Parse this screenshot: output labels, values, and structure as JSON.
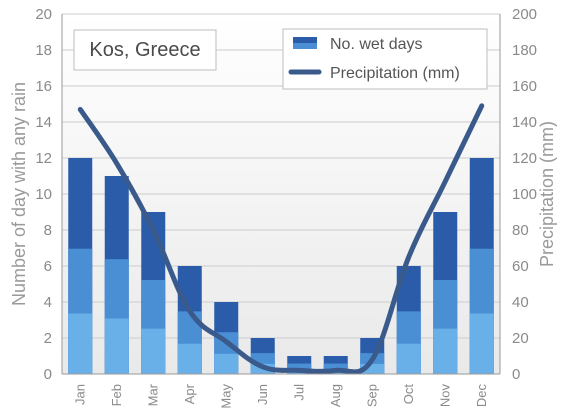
{
  "chart_data": {
    "type": "bar",
    "title": "Kos, Greece",
    "categories": [
      "Jan",
      "Feb",
      "Mar",
      "Apr",
      "May",
      "Jun",
      "Jul",
      "Aug",
      "Sep",
      "Oct",
      "Nov",
      "Dec"
    ],
    "series": [
      {
        "name": "No. wet days",
        "type": "bar",
        "axis": "left",
        "values": [
          12,
          11,
          9,
          6,
          4,
          2,
          1,
          1,
          2,
          6,
          9,
          12
        ]
      },
      {
        "name": "Precipitation (mm)",
        "type": "line",
        "axis": "right",
        "values": [
          147,
          117,
          80,
          35,
          18,
          4,
          2,
          2,
          8,
          65,
          107,
          149
        ]
      }
    ],
    "ylabel_left": "Number of day with any rain",
    "ylabel_right": "Precipitation (mm)",
    "ylim_left": [
      0,
      20
    ],
    "ylim_right": [
      0,
      200
    ],
    "yticks_left": [
      "0",
      "2",
      "4",
      "6",
      "8",
      "10",
      "12",
      "14",
      "16",
      "18",
      "20"
    ],
    "yticks_right": [
      "0",
      "20",
      "40",
      "60",
      "80",
      "100",
      "120",
      "140",
      "160",
      "180",
      "200"
    ],
    "grid": true,
    "legend_position": "top-right",
    "colors": {
      "bar_dark": "#2a5caa",
      "bar_mid": "#4a8fd4",
      "bar_light": "#6ab0e8",
      "line": "#3a5a8c",
      "grid": "#cccccc",
      "plot_bg": "#f2f2f2"
    }
  }
}
